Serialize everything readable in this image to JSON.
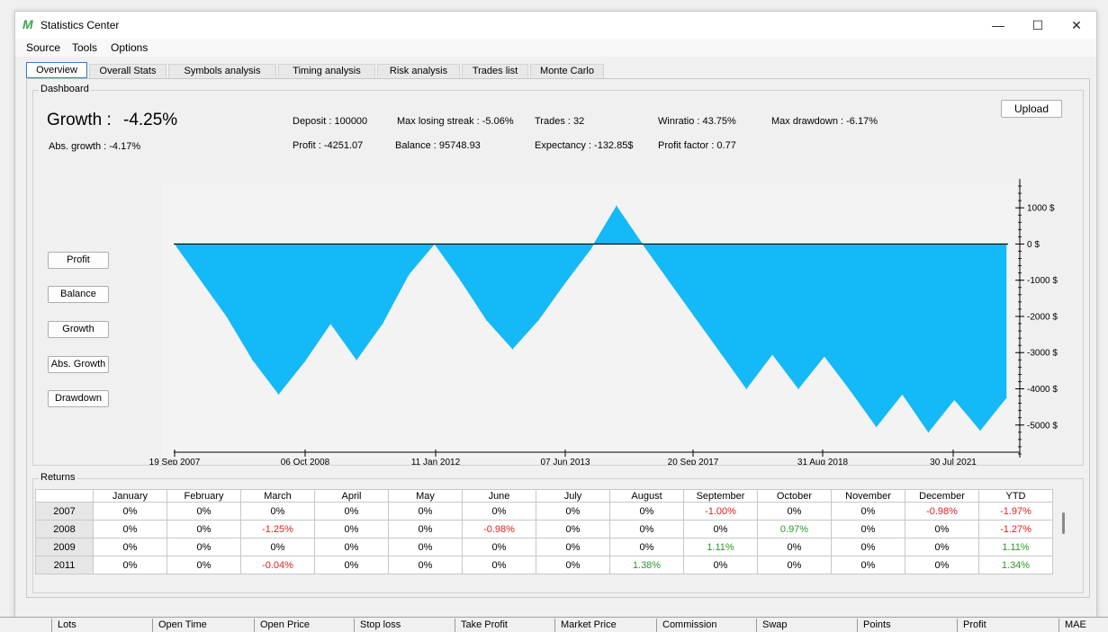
{
  "window": {
    "title": "Statistics Center",
    "logo": "M",
    "minimize": "—",
    "maximize": "☐",
    "close": "✕"
  },
  "menu": [
    "Source",
    "Tools",
    "Options"
  ],
  "tabs": [
    "Overview",
    "Overall Stats",
    "Symbols analysis",
    "Timing analysis",
    "Risk analysis",
    "Trades list",
    "Monte Carlo"
  ],
  "dashboard": {
    "label": "Dashboard",
    "growth_label": "Growth :",
    "growth_value": "-4.25%",
    "abs_growth": "Abs. growth :  -4.17%",
    "deposit": "Deposit :  100000",
    "profit": "Profit :  -4251.07",
    "max_losing_streak": "Max losing streak :  -5.06%",
    "balance": "Balance :  95748.93",
    "trades": "Trades :  32",
    "expectancy": "Expectancy :  -132.85$",
    "winratio": "Winratio :  43.75%",
    "profit_factor": "Profit factor :  0.77",
    "max_drawdown": "Max drawdown :  -6.17%",
    "upload": "Upload",
    "buttons": [
      "Profit",
      "Balance",
      "Growth",
      "Abs. Growth",
      "Drawdown"
    ]
  },
  "chart_data": {
    "type": "area",
    "color": "#14b9f7",
    "x_tick_labels": [
      "19 Sep 2007",
      "06 Oct 2008",
      "11 Jan 2012",
      "07 Jun 2013",
      "20 Sep 2017",
      "31 Aug 2018",
      "30 Jul 2021"
    ],
    "y_tick_labels": [
      "1000 $",
      "0 $",
      "-1000 $",
      "-2000 $",
      "-3000 $",
      "-4000 $",
      "-5000 $"
    ],
    "y_ticks": [
      1000,
      0,
      -1000,
      -2000,
      -3000,
      -4000,
      -5000
    ],
    "ylim": [
      -5900,
      1650
    ],
    "trade_index": [
      0,
      2,
      3,
      4,
      5,
      6,
      7,
      8,
      9,
      10,
      11,
      12,
      13,
      14,
      15,
      16,
      17,
      18,
      19,
      20,
      21,
      22,
      23,
      24,
      25,
      26,
      27,
      28,
      29,
      30,
      31,
      32
    ],
    "values": [
      0,
      -2000,
      -3200,
      -4150,
      -3250,
      -2200,
      -3200,
      -2200,
      -850,
      0,
      -1000,
      -2100,
      -2900,
      -2100,
      -1100,
      -150,
      1050,
      0,
      -1000,
      -2000,
      -3000,
      -4000,
      -3050,
      -4000,
      -3100,
      -4050,
      -5050,
      -4150,
      -5200,
      -4300,
      -5150,
      -4250
    ]
  },
  "returns": {
    "label": "Returns",
    "headers": [
      "",
      "January",
      "February",
      "March",
      "April",
      "May",
      "June",
      "July",
      "August",
      "September",
      "October",
      "November",
      "December",
      "YTD"
    ],
    "rows": [
      [
        "2007",
        "0%",
        "0%",
        "0%",
        "0%",
        "0%",
        "0%",
        "0%",
        "0%",
        "-1.00%",
        "0%",
        "0%",
        "-0.98%",
        "-1.97%"
      ],
      [
        "2008",
        "0%",
        "0%",
        "-1.25%",
        "0%",
        "0%",
        "-0.98%",
        "0%",
        "0%",
        "0%",
        "0.97%",
        "0%",
        "0%",
        "-1.27%"
      ],
      [
        "2009",
        "0%",
        "0%",
        "0%",
        "0%",
        "0%",
        "0%",
        "0%",
        "0%",
        "1.11%",
        "0%",
        "0%",
        "0%",
        "1.11%"
      ],
      [
        "2011",
        "0%",
        "0%",
        "-0.04%",
        "0%",
        "0%",
        "0%",
        "0%",
        "1.38%",
        "0%",
        "0%",
        "0%",
        "0%",
        "1.34%"
      ]
    ]
  },
  "trade_columns": [
    "Lots",
    "Open Time",
    "Open Price",
    "Stop loss",
    "Take Profit",
    "Market Price",
    "Commission",
    "Swap",
    "Points",
    "Profit",
    "MAE"
  ]
}
